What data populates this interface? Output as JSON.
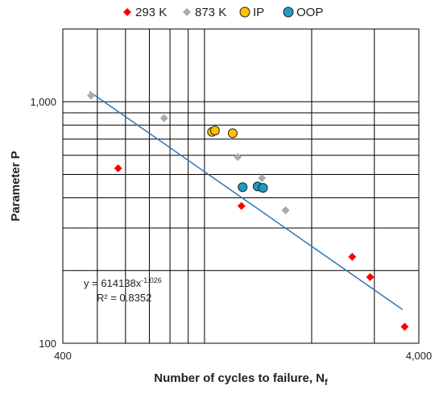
{
  "chart_data": {
    "type": "scatter",
    "xlabel": "Number of cycles to failure, N",
    "xlabel_sub": "f",
    "ylabel": "Parameter P",
    "xscale": "log",
    "yscale": "log",
    "xlim": [
      400,
      4000
    ],
    "ylim": [
      100,
      2000
    ],
    "x_ticks": [
      400,
      4000
    ],
    "x_tick_labels": [
      "400",
      "4,000"
    ],
    "y_ticks": [
      100,
      1000
    ],
    "y_tick_labels": [
      "100",
      "1,000"
    ],
    "grid": true,
    "legend_position": "top",
    "series": [
      {
        "name": "293 K",
        "marker": "diamond",
        "color": "#ff0000",
        "points": [
          [
            572,
            530
          ],
          [
            1270,
            370
          ],
          [
            2600,
            228
          ],
          [
            2920,
            188
          ],
          [
            3650,
            117
          ]
        ]
      },
      {
        "name": "873 K",
        "marker": "diamond",
        "color": "#aaaaaa",
        "points": [
          [
            480,
            1060
          ],
          [
            770,
            855
          ],
          [
            1240,
            590
          ],
          [
            1450,
            483
          ],
          [
            1690,
            355
          ]
        ]
      },
      {
        "name": "IP",
        "marker": "circle",
        "color": "#ffc000",
        "points": [
          [
            1050,
            750
          ],
          [
            1070,
            760
          ],
          [
            1200,
            740
          ]
        ]
      },
      {
        "name": "OOP",
        "marker": "circle",
        "color": "#1f9ac9",
        "points": [
          [
            1280,
            443
          ],
          [
            1410,
            446
          ],
          [
            1460,
            440
          ]
        ]
      }
    ],
    "trendline": {
      "type": "power",
      "coefficient": 614138,
      "exponent": -1.026,
      "x_range": [
        475,
        3600
      ],
      "color": "#2e75b6",
      "equation_prefix": "y = 614138x",
      "equation_exponent": "-1.026",
      "r2_text": "R² = 0.8352"
    }
  }
}
